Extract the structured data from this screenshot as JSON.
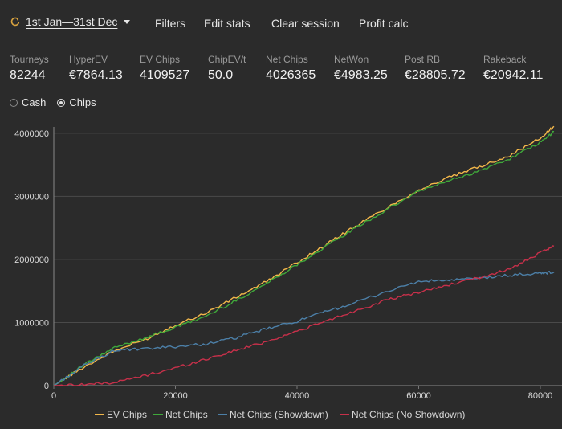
{
  "header": {
    "date_range": "1st Jan—31st Dec",
    "menu": [
      "Filters",
      "Edit stats",
      "Clear session",
      "Profit calc"
    ]
  },
  "stats": [
    {
      "label": "Tourneys",
      "value": "82244"
    },
    {
      "label": "HyperEV",
      "value": "€7864.13"
    },
    {
      "label": "EV Chips",
      "value": "4109527"
    },
    {
      "label": "ChipEV/t",
      "value": "50.0"
    },
    {
      "label": "Net Chips",
      "value": "4026365"
    },
    {
      "label": "NetWon",
      "value": "€4983.25"
    },
    {
      "label": "Post RB",
      "value": "€28805.72"
    },
    {
      "label": "Rakeback",
      "value": "€20942.11"
    }
  ],
  "mode": {
    "options": [
      "Cash",
      "Chips"
    ],
    "selected": "Chips"
  },
  "chart_data": {
    "type": "line",
    "xlim": [
      0,
      82244
    ],
    "ylim": [
      0,
      4100000
    ],
    "x_ticks": [
      "0",
      "20000",
      "40000",
      "60000",
      "80000"
    ],
    "y_ticks": [
      "0",
      "1000000",
      "2000000",
      "3000000",
      "4000000"
    ],
    "grid": true,
    "legend_position": "bottom",
    "x": [
      0,
      5000,
      10000,
      15000,
      20000,
      25000,
      30000,
      35000,
      40000,
      45000,
      50000,
      55000,
      60000,
      65000,
      70000,
      75000,
      80000,
      82244
    ],
    "series": [
      {
        "name": "EV Chips",
        "color": "#f2b74a",
        "values": [
          0,
          300000,
          550000,
          730000,
          960000,
          1150000,
          1400000,
          1650000,
          1950000,
          2250000,
          2550000,
          2830000,
          3100000,
          3300000,
          3470000,
          3650000,
          3920000,
          4109527
        ]
      },
      {
        "name": "Net Chips",
        "color": "#3fa83a",
        "values": [
          0,
          330000,
          600000,
          760000,
          920000,
          1100000,
          1350000,
          1620000,
          1920000,
          2220000,
          2520000,
          2800000,
          3080000,
          3250000,
          3400000,
          3600000,
          3850000,
          4026365
        ]
      },
      {
        "name": "Net Chips (Showdown)",
        "color": "#4c7fa7",
        "values": [
          0,
          320000,
          560000,
          580000,
          620000,
          660000,
          760000,
          900000,
          1020000,
          1180000,
          1330000,
          1500000,
          1650000,
          1670000,
          1700000,
          1750000,
          1780000,
          1800000
        ]
      },
      {
        "name": "Net Chips (No Showdown)",
        "color": "#c7304a",
        "values": [
          0,
          20000,
          50000,
          160000,
          280000,
          420000,
          560000,
          700000,
          860000,
          1030000,
          1200000,
          1360000,
          1480000,
          1600000,
          1710000,
          1850000,
          2100000,
          2210000
        ]
      }
    ]
  }
}
